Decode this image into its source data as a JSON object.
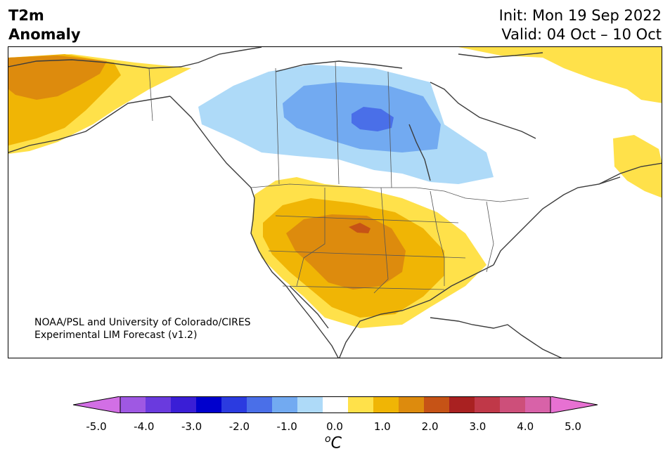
{
  "title": {
    "variable": "T2m",
    "subtitle": "Anomaly",
    "init": "Init: Mon 19 Sep 2022",
    "valid": "Valid: 04 Oct – 10 Oct"
  },
  "credit": {
    "line1": "NOAA/PSL and University of Colorado/CIRES",
    "line2": "Experimental LIM Forecast (v1.2)"
  },
  "colorbar": {
    "ticks": [
      "-5.0",
      "-4.0",
      "-3.0",
      "-2.0",
      "-1.0",
      "0.0",
      "1.0",
      "2.0",
      "3.0",
      "4.0",
      "5.0"
    ],
    "unit_prefix": "o",
    "unit_main": "C",
    "levels": [
      -5.0,
      -4.5,
      -4.0,
      -3.5,
      -3.0,
      -2.5,
      -2.0,
      -1.5,
      -1.0,
      -0.5,
      0.5,
      1.0,
      1.5,
      2.0,
      2.5,
      3.0,
      3.5,
      4.0,
      4.5,
      5.0
    ],
    "colors": [
      "#d26fe5",
      "#9f58e3",
      "#6a3ade",
      "#3a1ed6",
      "#0000cd",
      "#2b3be0",
      "#4a6fe8",
      "#72aaf1",
      "#aedaf8",
      "#ffffff",
      "#ffe14a",
      "#f0b505",
      "#dd8b0d",
      "#c65316",
      "#a92121",
      "#c03848",
      "#cd4f7a",
      "#d862a8",
      "#e771d2"
    ],
    "extend_low_color": "#d26fe5",
    "extend_high_color": "#e771d2"
  },
  "map_colors": {
    "ocean": "#ffffff",
    "coast": "#3c3c3c",
    "pos_0_5": "#ffe14a",
    "pos_1_0": "#f0b505",
    "pos_1_5": "#dd8b0d",
    "pos_2_0": "#c65316",
    "neg_0_5": "#aedaf8",
    "neg_1_0": "#72aaf1",
    "neg_1_5": "#4a6fe8"
  }
}
